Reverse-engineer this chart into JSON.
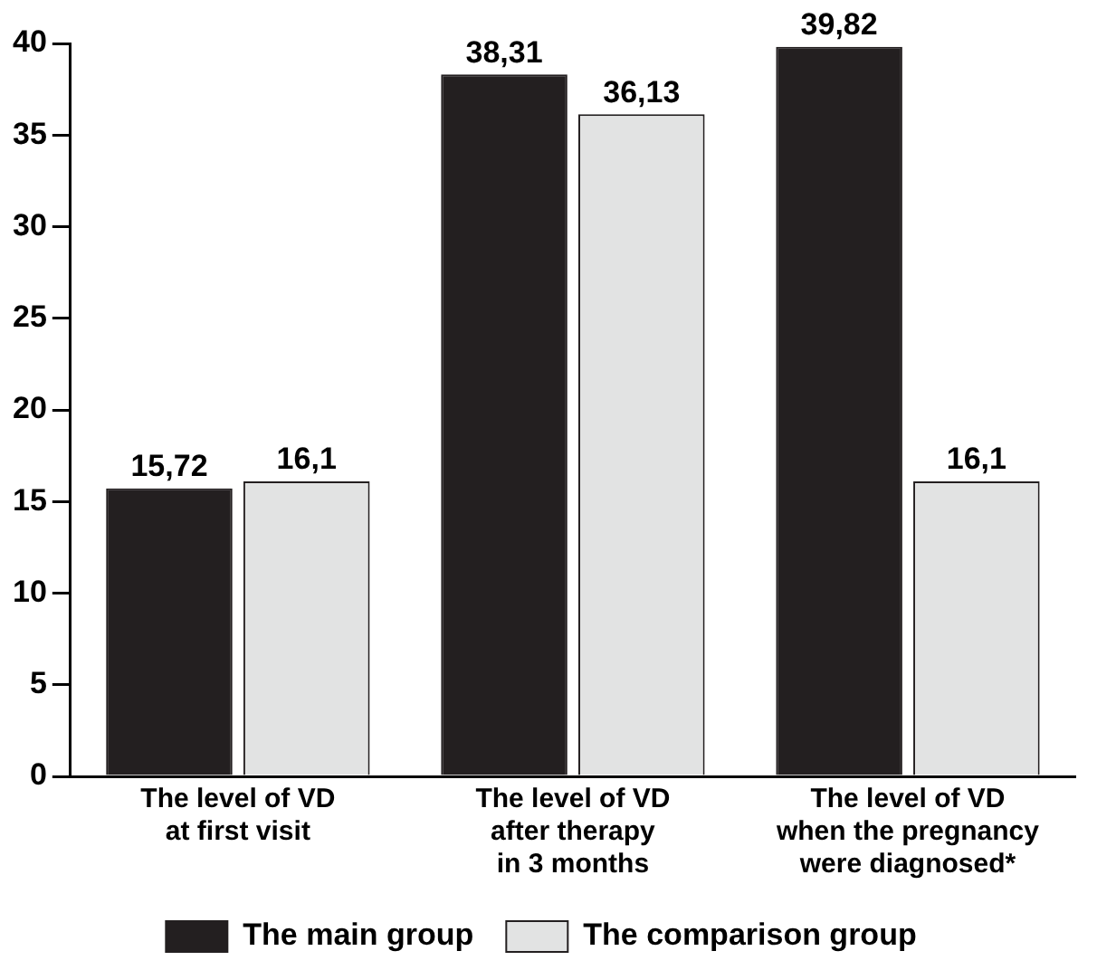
{
  "chart_data": {
    "type": "bar",
    "categories": [
      "The level of VD\nat first visit",
      "The level of VD\nafter therapy\nin 3 months",
      "The level of VD\nwhen the pregnancy\nwere diagnosed*"
    ],
    "series": [
      {
        "name": "The main group",
        "color": "#231f20",
        "values": [
          15.72,
          38.31,
          39.82
        ],
        "value_labels": [
          "15,72",
          "38,31",
          "39,82"
        ]
      },
      {
        "name": "The comparison group",
        "color": "#e2e3e3",
        "values": [
          16.1,
          36.13,
          16.1
        ],
        "value_labels": [
          "16,1",
          "36,13",
          "16,1"
        ]
      }
    ],
    "ylim": [
      0,
      40
    ],
    "yticks": [
      0,
      5,
      10,
      15,
      20,
      25,
      30,
      35,
      40
    ],
    "grid": false,
    "legend": "bottom"
  }
}
